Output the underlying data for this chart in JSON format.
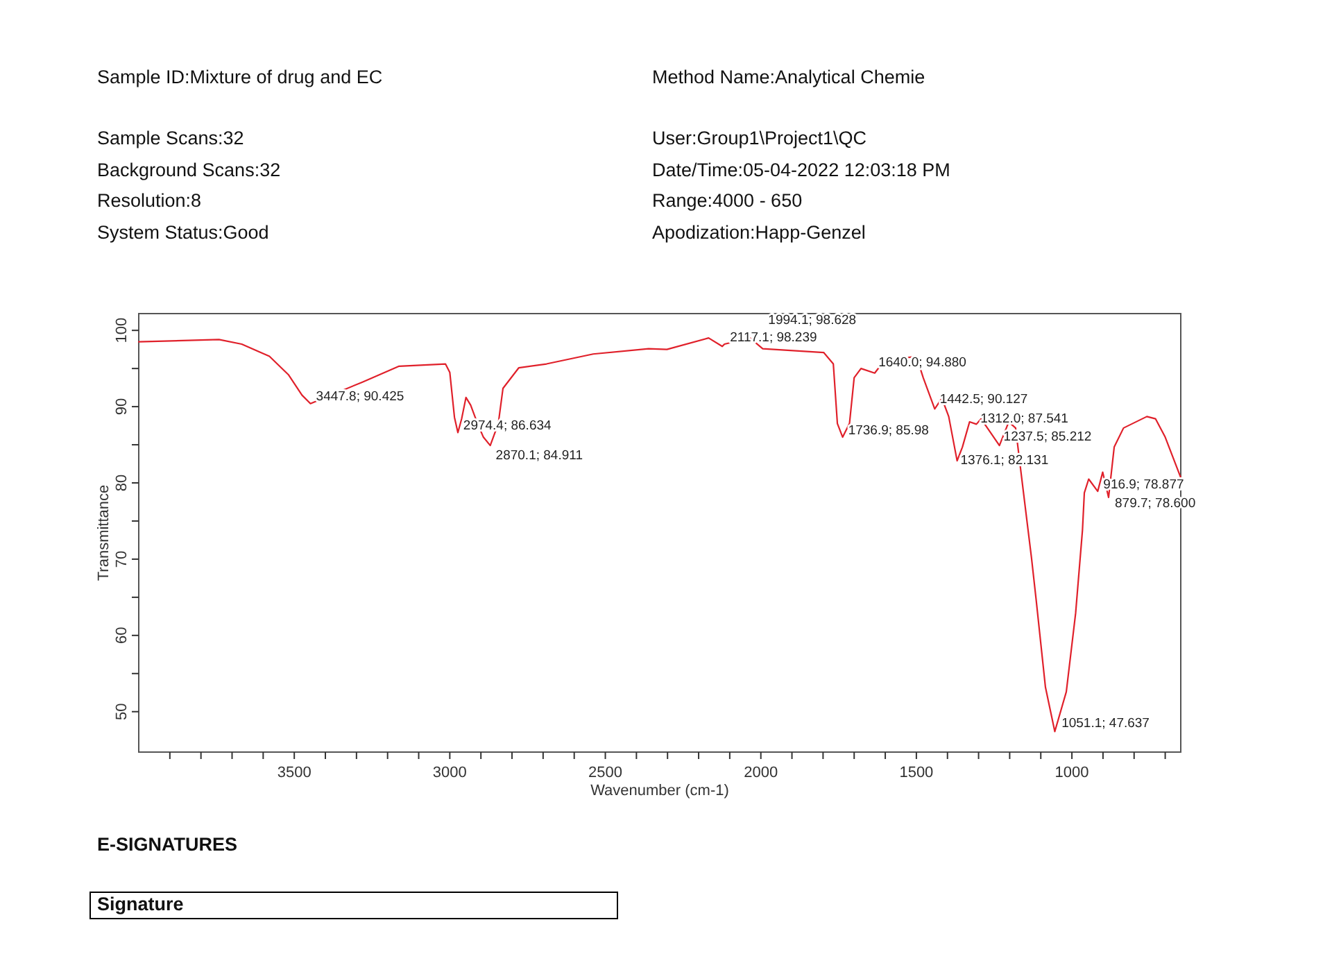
{
  "chart_data": {
    "type": "line",
    "xlabel": "Wavenumber (cm-1)",
    "ylabel": "Transmittance",
    "xlim": [
      4000,
      650
    ],
    "ylim": [
      44.7,
      102.2
    ],
    "xticks": [
      {
        "value": 3900,
        "label": null
      },
      {
        "value": 3800,
        "label": null
      },
      {
        "value": 3700,
        "label": null
      },
      {
        "value": 3600,
        "label": null
      },
      3500,
      {
        "value": 3400,
        "label": null
      },
      {
        "value": 3300,
        "label": null
      },
      {
        "value": 3200,
        "label": null
      },
      {
        "value": 3100,
        "label": null
      },
      3000,
      {
        "value": 2900,
        "label": null
      },
      {
        "value": 2800,
        "label": null
      },
      {
        "value": 2700,
        "label": null
      },
      {
        "value": 2600,
        "label": null
      },
      2500,
      {
        "value": 2400,
        "label": null
      },
      {
        "value": 2300,
        "label": null
      },
      {
        "value": 2200,
        "label": null
      },
      {
        "value": 2100,
        "label": null
      },
      2000,
      {
        "value": 1900,
        "label": null
      },
      {
        "value": 1800,
        "label": null
      },
      {
        "value": 1700,
        "label": null
      },
      {
        "value": 1600,
        "label": null
      },
      1500,
      {
        "value": 1400,
        "label": null
      },
      {
        "value": 1300,
        "label": null
      },
      {
        "value": 1200,
        "label": null
      },
      {
        "value": 1100,
        "label": null
      },
      1000,
      {
        "value": 900,
        "label": null
      },
      {
        "value": 800,
        "label": null
      },
      {
        "value": 700,
        "label": null
      }
    ],
    "yticks": [
      50,
      {
        "value": 55,
        "label": null
      },
      60,
      {
        "value": 65,
        "label": null
      },
      70,
      {
        "value": 75,
        "label": null
      },
      80,
      {
        "value": 85,
        "label": null
      },
      90,
      {
        "value": 95,
        "label": null
      },
      100
    ],
    "grid": false,
    "series": [
      {
        "color": "#e0202a",
        "x": [
          4000,
          3742,
          3669,
          3580,
          3519,
          3475,
          3448,
          3371,
          3282,
          3163,
          3014,
          3000,
          2985,
          2974,
          2962,
          2948,
          2933,
          2911,
          2892,
          2870,
          2844,
          2829,
          2778,
          2689,
          2539,
          2361,
          2302,
          2168,
          2124,
          2117,
          2035,
          1994,
          1798,
          1767,
          1754,
          1737,
          1715,
          1700,
          1678,
          1634,
          1604,
          1500,
          1478,
          1441,
          1418,
          1396,
          1369,
          1352,
          1329,
          1307,
          1292,
          1233,
          1203,
          1181,
          1152,
          1130,
          1115,
          1085,
          1055,
          1018,
          988,
          966,
          960,
          946,
          917,
          901,
          882,
          864,
          834,
          759,
          731,
          700,
          650
        ],
        "values": [
          98.5,
          98.8,
          98.2,
          96.6,
          94.2,
          91.5,
          90.4,
          91.7,
          93.2,
          95.3,
          95.6,
          94.5,
          88.6,
          86.6,
          88.4,
          91.2,
          90.2,
          87.8,
          86.0,
          84.9,
          87.8,
          92.4,
          95.1,
          95.6,
          96.9,
          97.6,
          97.5,
          99.0,
          97.9,
          98.2,
          99.0,
          97.6,
          97.1,
          95.6,
          87.8,
          86.0,
          87.8,
          93.8,
          95.0,
          94.4,
          96.0,
          96.6,
          93.8,
          89.7,
          91.1,
          88.7,
          82.9,
          84.7,
          88.0,
          87.7,
          88.4,
          84.9,
          88.0,
          87.2,
          77.5,
          70.2,
          64.7,
          53.2,
          47.4,
          52.6,
          62.9,
          73.8,
          78.7,
          80.5,
          78.9,
          81.4,
          78.1,
          84.7,
          87.2,
          88.7,
          88.4,
          86.0,
          80.7
        ]
      }
    ],
    "annotations": [
      "Sample ID:Mixture of drug and EC",
      "Method Name:Analytical Chemie",
      "Sample Scans:32",
      "User:Group1\\Project1\\QC",
      "Background Scans:32",
      "Date/Time:05-04-2022 12:03:18 PM",
      "Resolution:8",
      "Range:4000 - 650",
      "System Status:Good",
      "Apodization:Happ-Genzel",
      "E-SIGNATURES",
      "Signature",
      {
        "text": "3447.8; 90.425",
        "x": 3447.8,
        "y": 90.425
      },
      {
        "text": "2974.4; 86.634",
        "x": 2974.4,
        "y": 86.634
      },
      {
        "text": "2870.1; 84.911",
        "x": 2870.1,
        "y": 84.911
      },
      {
        "text": "2117.1; 98.239",
        "x": 2117.1,
        "y": 98.239
      },
      {
        "text": "1994.1; 98.628",
        "x": 1994.1,
        "y": 98.628
      },
      {
        "text": "1640.0; 94.880",
        "x": 1640.0,
        "y": 94.88
      },
      {
        "text": "1736.9; 85.98",
        "x": 1736.9,
        "y": 85.98
      },
      {
        "text": "1442.5; 90.127",
        "x": 1442.5,
        "y": 90.127
      },
      {
        "text": "1312.0; 87.541",
        "x": 1312.0,
        "y": 87.541
      },
      {
        "text": "1237.5; 85.212",
        "x": 1237.5,
        "y": 85.212
      },
      {
        "text": "1376.1; 82.131",
        "x": 1376.1,
        "y": 82.131
      },
      {
        "text": "916.9; 78.877",
        "x": 916.9,
        "y": 78.877
      },
      {
        "text": "879.7; 78.600",
        "x": 879.7,
        "y": 78.6
      },
      {
        "text": "1051.1; 47.637",
        "x": 1051.1,
        "y": 47.637
      }
    ]
  }
}
